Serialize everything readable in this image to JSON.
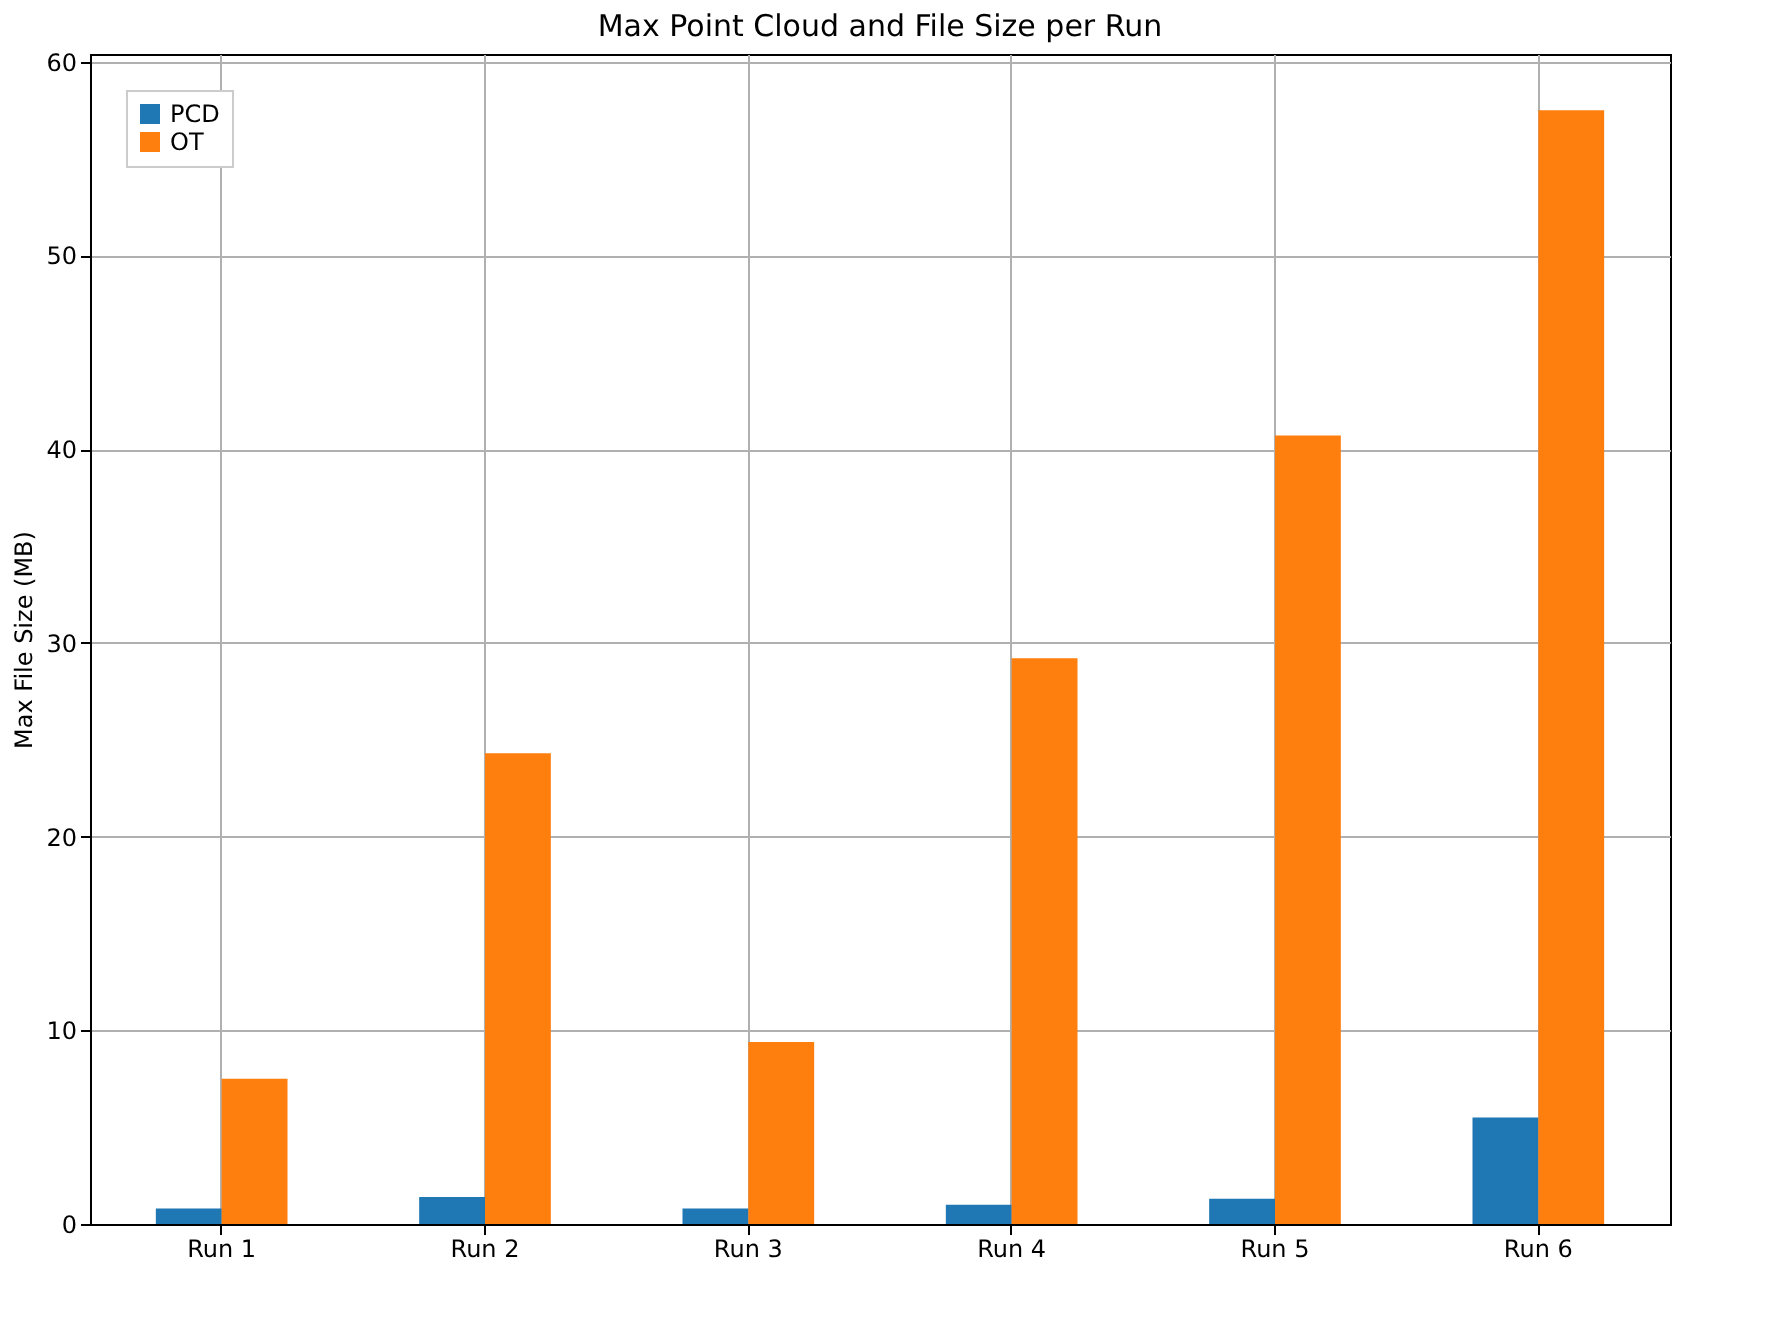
{
  "chart_data": {
    "type": "bar",
    "title": "Max Point Cloud and File Size per Run",
    "ylabel": "Max File Size (MB)",
    "categories": [
      "Run 1",
      "Run 2",
      "Run 3",
      "Run 4",
      "Run 5",
      "Run 6"
    ],
    "series": [
      {
        "name": "PCD",
        "color": "#1f77b4",
        "values": [
          0.8,
          1.4,
          0.8,
          1.0,
          1.3,
          5.5
        ]
      },
      {
        "name": "OT",
        "color": "#ff7f0e",
        "values": [
          7.5,
          24.3,
          9.4,
          29.2,
          40.7,
          57.5
        ]
      }
    ],
    "ylim": [
      0,
      60.4
    ],
    "yticks": [
      0,
      10,
      20,
      30,
      40,
      50,
      60
    ],
    "grid": true,
    "legend": "top left"
  }
}
